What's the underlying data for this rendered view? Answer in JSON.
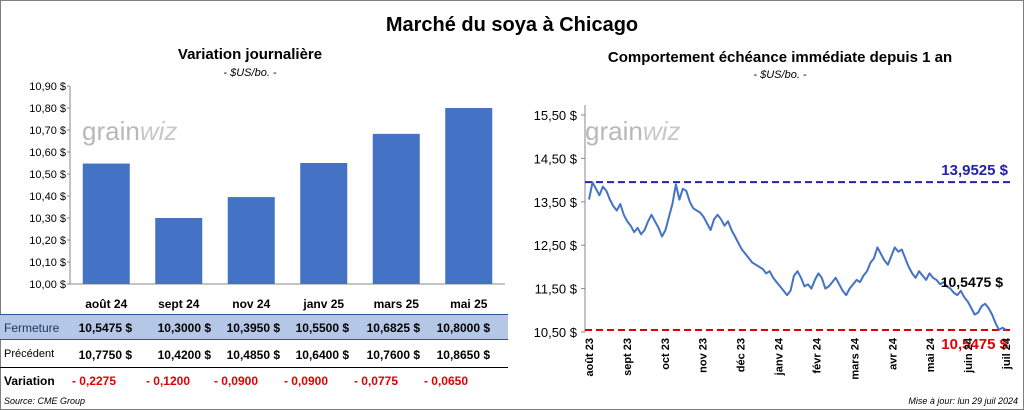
{
  "title": "Marché du soya à Chicago",
  "left_chart": {
    "title": "Variation journalière",
    "unit": "- $US/bo. -"
  },
  "right_chart": {
    "title": "Comportement échéance immédiate depuis 1 an",
    "unit": "- $US/bo. -"
  },
  "watermark": "grainwiz",
  "table": {
    "row_labels": [
      "Fermeture",
      "Précédent",
      "Variation"
    ],
    "fermeture": [
      "10,5475 $",
      "10,3000 $",
      "10,3950 $",
      "10,5500 $",
      "10,6825 $",
      "10,8000 $"
    ],
    "precedent": [
      "10,7750 $",
      "10,4200 $",
      "10,4850 $",
      "10,6400 $",
      "10,7600 $",
      "10,8650 $"
    ],
    "variation": [
      "- 0,2275",
      "- 0,1200",
      "- 0,0900",
      "- 0,0900",
      "- 0,0775",
      "- 0,0650"
    ]
  },
  "source": "Source: CME Group",
  "updated": "Mise à jour: lun 29 juil 2024",
  "colors": {
    "bar": "#4472c4",
    "line": "#4472c4",
    "high": "#2222aa",
    "low": "#e00000"
  },
  "chart_data": [
    {
      "type": "bar",
      "title": "Variation journalière",
      "categories": [
        "août 24",
        "sept 24",
        "nov 24",
        "janv 25",
        "mars 25",
        "mai 25"
      ],
      "values": [
        10.5475,
        10.3,
        10.395,
        10.55,
        10.6825,
        10.8
      ],
      "ylim": [
        10.0,
        10.9
      ],
      "yticks": [
        "10,00 $",
        "10,10 $",
        "10,20 $",
        "10,30 $",
        "10,40 $",
        "10,50 $",
        "10,60 $",
        "10,70 $",
        "10,80 $",
        "10,90 $"
      ],
      "grid": false
    },
    {
      "type": "line",
      "title": "Comportement échéance immédiate depuis 1 an",
      "ylim": [
        10.5,
        15.5
      ],
      "yticks": [
        "10,50 $",
        "11,50 $",
        "12,50 $",
        "13,50 $",
        "14,50 $",
        "15,50 $"
      ],
      "xticks": [
        "août 23",
        "sept 23",
        "oct 23",
        "nov 23",
        "déc 23",
        "janv 24",
        "févr 24",
        "mars 24",
        "avr 24",
        "mai 24",
        "juin 24",
        "juil 24"
      ],
      "x": [
        0,
        3,
        6,
        9,
        12,
        15,
        18,
        21,
        24,
        27,
        30,
        33,
        36,
        39,
        42,
        45,
        48,
        51,
        54,
        57,
        60,
        63,
        66,
        69,
        72,
        75,
        78,
        81,
        84,
        87,
        90,
        93,
        96,
        99,
        102,
        105,
        108,
        111,
        114,
        117,
        120,
        123,
        126,
        129,
        132,
        135,
        138,
        141,
        144,
        147,
        150,
        153,
        156,
        159,
        162,
        165,
        168,
        171,
        174,
        177,
        180,
        183,
        186,
        189,
        192,
        195,
        198,
        201,
        204,
        207,
        210,
        213,
        216,
        219,
        222,
        225,
        228,
        231,
        234,
        237,
        240,
        243,
        246,
        249,
        252,
        255,
        258,
        261,
        264,
        267,
        270,
        273,
        276,
        279,
        282,
        285,
        288,
        291,
        294,
        297,
        300,
        303,
        306,
        309,
        312,
        315,
        318,
        321,
        324,
        327,
        330,
        333,
        336,
        339,
        342,
        345,
        348,
        351,
        354,
        357,
        360
      ],
      "series": [
        {
          "values": [
            13.55,
            13.95,
            13.8,
            13.65,
            13.85,
            13.75,
            13.55,
            13.4,
            13.3,
            13.45,
            13.2,
            13.05,
            12.95,
            12.8,
            12.9,
            12.75,
            12.85,
            13.05,
            13.2,
            13.05,
            12.9,
            12.7,
            12.85,
            13.15,
            13.45,
            13.9,
            13.55,
            13.8,
            13.75,
            13.5,
            13.35,
            13.3,
            13.25,
            13.15,
            13.0,
            12.85,
            13.1,
            13.2,
            13.1,
            12.95,
            13.05,
            12.85,
            12.7,
            12.55,
            12.4,
            12.3,
            12.2,
            12.1,
            12.05,
            12.0,
            11.95,
            11.85,
            11.9,
            11.75,
            11.65,
            11.55,
            11.45,
            11.35,
            11.45,
            11.8,
            11.9,
            11.75,
            11.55,
            11.6,
            11.5,
            11.7,
            11.85,
            11.75,
            11.5,
            11.55,
            11.65,
            11.75,
            11.6,
            11.45,
            11.35,
            11.5,
            11.6,
            11.7,
            11.65,
            11.8,
            11.9,
            12.1,
            12.2,
            12.45,
            12.3,
            12.15,
            12.05,
            12.25,
            12.45,
            12.35,
            12.4,
            12.2,
            12.0,
            11.85,
            11.75,
            11.9,
            11.8,
            11.7,
            11.85,
            11.75,
            11.7,
            11.6,
            11.65,
            11.55,
            11.5,
            11.4,
            11.35,
            11.45,
            11.3,
            11.2,
            11.05,
            10.9,
            10.95,
            11.1,
            11.15,
            11.05,
            10.9,
            10.7,
            10.55,
            10.6,
            10.5475
          ]
        }
      ],
      "reference_lines": [
        {
          "label": "13,9525 $",
          "value": 13.9525
        },
        {
          "label": "10,5475 $",
          "value": 10.5475
        }
      ],
      "end_label": "10,5475 $"
    }
  ]
}
